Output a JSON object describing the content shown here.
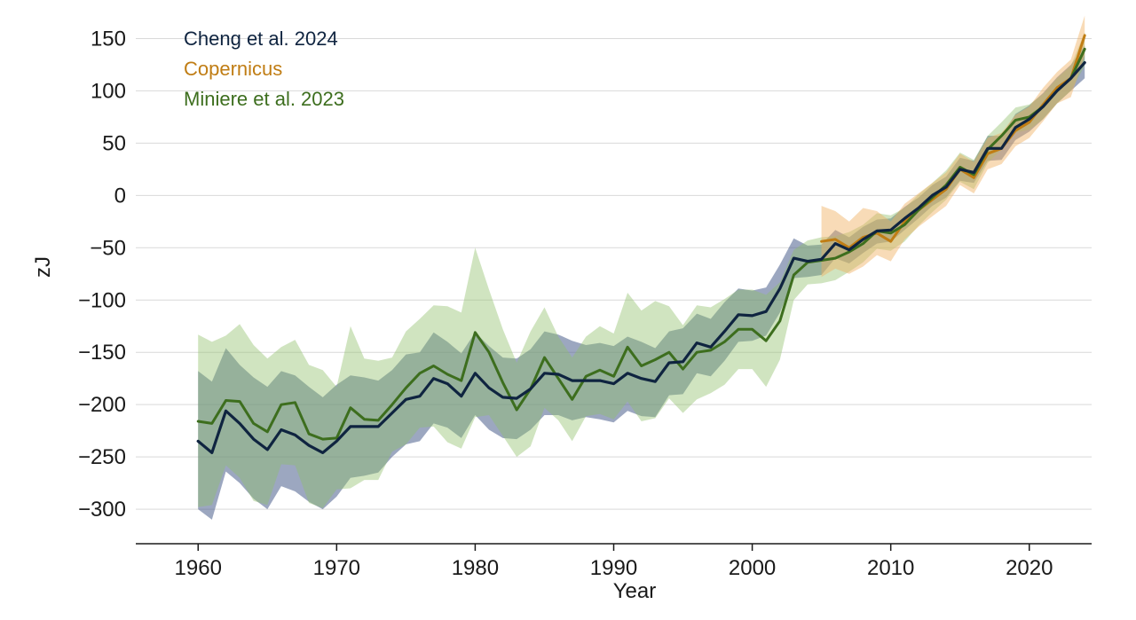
{
  "chart_data": {
    "type": "line",
    "title": "",
    "xlabel": "Year",
    "ylabel": "zJ",
    "xlim": [
      1955.5,
      2024.5
    ],
    "ylim": [
      -333,
      175
    ],
    "xticks": [
      1960,
      1970,
      1980,
      1990,
      2000,
      2010,
      2020
    ],
    "yticks": [
      150,
      100,
      50,
      0,
      -50,
      -100,
      -150,
      -200,
      -250,
      -300
    ],
    "ytick_labels": [
      "150",
      "100",
      "50",
      "0",
      "−50",
      "−100",
      "−150",
      "−200",
      "−250",
      "−300"
    ],
    "grid": true,
    "legend_position": "top-left",
    "series": [
      {
        "name": "Cheng et al. 2024",
        "color": "#0f2440",
        "band_color": "#4a5f8c",
        "x": [
          1960,
          1961,
          1962,
          1963,
          1964,
          1965,
          1966,
          1967,
          1968,
          1969,
          1970,
          1971,
          1972,
          1973,
          1974,
          1975,
          1976,
          1977,
          1978,
          1979,
          1980,
          1981,
          1982,
          1983,
          1984,
          1985,
          1986,
          1987,
          1988,
          1989,
          1990,
          1991,
          1992,
          1993,
          1994,
          1995,
          1996,
          1997,
          1998,
          1999,
          2000,
          2001,
          2002,
          2003,
          2004,
          2005,
          2006,
          2007,
          2008,
          2009,
          2010,
          2011,
          2012,
          2013,
          2014,
          2015,
          2016,
          2017,
          2018,
          2019,
          2020,
          2021,
          2022,
          2023,
          2024
        ],
        "values": [
          -235,
          -246,
          -206,
          -218,
          -233,
          -243,
          -224,
          -229,
          -239,
          -246,
          -235,
          -221,
          -221,
          -221,
          -208,
          -195,
          -192,
          -175,
          -180,
          -192,
          -170,
          -184,
          -193,
          -194,
          -185,
          -170,
          -171,
          -177,
          -177,
          -177,
          -180,
          -170,
          -175,
          -178,
          -160,
          -159,
          -141,
          -145,
          -130,
          -114,
          -115,
          -111,
          -89,
          -60,
          -63,
          -61,
          -46,
          -52,
          -42,
          -34,
          -33,
          -22,
          -12,
          0,
          8,
          25,
          22,
          45,
          45,
          65,
          73,
          85,
          100,
          112,
          127
        ],
        "upper": [
          -168,
          -178,
          -146,
          -162,
          -174,
          -183,
          -168,
          -172,
          -183,
          -193,
          -181,
          -172,
          -174,
          -177,
          -167,
          -152,
          -150,
          -131,
          -140,
          -151,
          -131,
          -144,
          -155,
          -156,
          -147,
          -130,
          -133,
          -139,
          -143,
          -141,
          -144,
          -135,
          -140,
          -146,
          -130,
          -127,
          -113,
          -118,
          -102,
          -89,
          -91,
          -88,
          -66,
          -41,
          -48,
          -47,
          -33,
          -40,
          -30,
          -23,
          -22,
          -11,
          -2,
          10,
          18,
          36,
          33,
          57,
          57,
          78,
          86,
          98,
          113,
          125,
          143
        ],
        "lower": [
          -300,
          -310,
          -264,
          -275,
          -290,
          -300,
          -278,
          -283,
          -293,
          -300,
          -288,
          -270,
          -268,
          -265,
          -250,
          -238,
          -235,
          -218,
          -222,
          -232,
          -210,
          -224,
          -232,
          -233,
          -224,
          -210,
          -210,
          -215,
          -212,
          -214,
          -217,
          -206,
          -211,
          -212,
          -191,
          -190,
          -170,
          -173,
          -158,
          -140,
          -139,
          -134,
          -112,
          -79,
          -78,
          -76,
          -60,
          -65,
          -55,
          -46,
          -44,
          -33,
          -22,
          -10,
          -2,
          14,
          12,
          33,
          34,
          53,
          61,
          73,
          88,
          100,
          112
        ]
      },
      {
        "name": "Copernicus",
        "color": "#c07d14",
        "band_color": "#f0b060",
        "x": [
          2005,
          2006,
          2007,
          2008,
          2009,
          2010,
          2011,
          2012,
          2013,
          2014,
          2015,
          2016,
          2017,
          2018,
          2019,
          2020,
          2021,
          2022,
          2023,
          2024
        ],
        "values": [
          -44,
          -42,
          -50,
          -40,
          -36,
          -44,
          -25,
          -14,
          -4,
          6,
          25,
          17,
          40,
          45,
          62,
          70,
          87,
          103,
          112,
          153
        ],
        "upper": [
          -10,
          -15,
          -25,
          -12,
          -15,
          -25,
          -8,
          2,
          12,
          22,
          40,
          32,
          55,
          60,
          77,
          85,
          103,
          118,
          130,
          172
        ],
        "lower": [
          -78,
          -70,
          -75,
          -68,
          -57,
          -63,
          -42,
          -30,
          -20,
          -10,
          10,
          2,
          25,
          30,
          47,
          55,
          71,
          88,
          94,
          134
        ]
      },
      {
        "name": "Miniere et al. 2023",
        "color": "#3d6e1e",
        "band_color": "#8fbf6a",
        "x": [
          1960,
          1961,
          1962,
          1963,
          1964,
          1965,
          1966,
          1967,
          1968,
          1969,
          1970,
          1971,
          1972,
          1973,
          1974,
          1975,
          1976,
          1977,
          1978,
          1979,
          1980,
          1981,
          1982,
          1983,
          1984,
          1985,
          1986,
          1987,
          1988,
          1989,
          1990,
          1991,
          1992,
          1993,
          1994,
          1995,
          1996,
          1997,
          1998,
          1999,
          2000,
          2001,
          2002,
          2003,
          2004,
          2005,
          2006,
          2007,
          2008,
          2009,
          2010,
          2011,
          2012,
          2013,
          2014,
          2015,
          2016,
          2017,
          2018,
          2019,
          2020,
          2021,
          2022,
          2023,
          2024
        ],
        "values": [
          -216,
          -218,
          -196,
          -197,
          -218,
          -226,
          -200,
          -198,
          -228,
          -233,
          -232,
          -203,
          -214,
          -215,
          -200,
          -184,
          -170,
          -163,
          -171,
          -177,
          -131,
          -150,
          -179,
          -205,
          -185,
          -155,
          -175,
          -195,
          -173,
          -167,
          -173,
          -145,
          -163,
          -157,
          -150,
          -166,
          -150,
          -148,
          -140,
          -128,
          -128,
          -139,
          -120,
          -76,
          -64,
          -62,
          -60,
          -54,
          -46,
          -34,
          -36,
          -28,
          -14,
          -2,
          10,
          27,
          20,
          44,
          57,
          72,
          75,
          85,
          100,
          112,
          140
        ],
        "upper": [
          -133,
          -140,
          -134,
          -123,
          -143,
          -156,
          -145,
          -138,
          -162,
          -167,
          -183,
          -125,
          -156,
          -158,
          -155,
          -130,
          -118,
          -105,
          -106,
          -112,
          -50,
          -90,
          -128,
          -160,
          -130,
          -107,
          -135,
          -155,
          -135,
          -125,
          -132,
          -93,
          -110,
          -101,
          -106,
          -124,
          -105,
          -107,
          -99,
          -90,
          -90,
          -95,
          -83,
          -52,
          -43,
          -40,
          -39,
          -35,
          -28,
          -17,
          -19,
          -12,
          1,
          12,
          24,
          41,
          34,
          57,
          70,
          84,
          87,
          97,
          112,
          124,
          156
        ],
        "lower": [
          -298,
          -296,
          -258,
          -270,
          -292,
          -296,
          -257,
          -258,
          -294,
          -299,
          -281,
          -280,
          -272,
          -272,
          -245,
          -238,
          -222,
          -221,
          -236,
          -242,
          -212,
          -210,
          -230,
          -250,
          -240,
          -203,
          -215,
          -235,
          -211,
          -209,
          -214,
          -197,
          -216,
          -213,
          -194,
          -208,
          -195,
          -189,
          -181,
          -166,
          -166,
          -183,
          -157,
          -100,
          -85,
          -84,
          -81,
          -73,
          -64,
          -51,
          -53,
          -44,
          -29,
          -16,
          -4,
          13,
          6,
          31,
          44,
          60,
          63,
          73,
          88,
          100,
          124
        ]
      }
    ]
  }
}
